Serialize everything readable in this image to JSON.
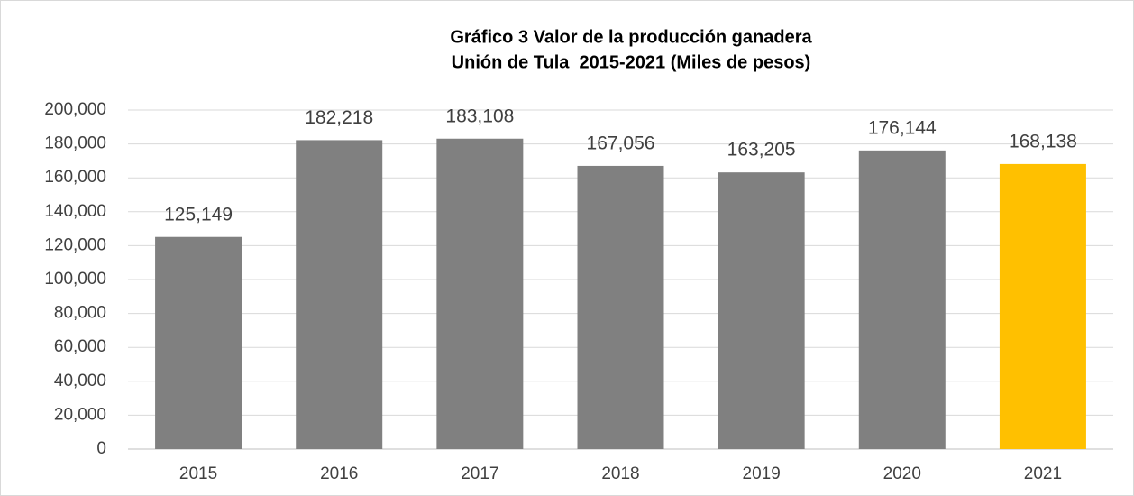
{
  "chart_data": {
    "type": "bar",
    "title": "Gráfico 3 Valor de la producción ganadera",
    "subtitle": "Unión de Tula  2015-2021 (Miles de pesos)",
    "categories": [
      "2015",
      "2016",
      "2017",
      "2018",
      "2019",
      "2020",
      "2021"
    ],
    "values": [
      125149,
      182218,
      183108,
      167056,
      163205,
      176144,
      168138
    ],
    "value_labels": [
      "125,149",
      "182,218",
      "183,108",
      "167,056",
      "163,205",
      "176,144",
      "168,138"
    ],
    "colors": [
      "#808080",
      "#808080",
      "#808080",
      "#808080",
      "#808080",
      "#808080",
      "#ffc000"
    ],
    "ylim": [
      0,
      200000
    ],
    "yticks": [
      0,
      {
        "value": 20000,
        "label": "20,000"
      },
      {
        "value": 40000,
        "label": "40,000"
      },
      {
        "value": 60000,
        "label": "60,000"
      },
      {
        "value": 80000,
        "label": "80,000"
      },
      {
        "value": 100000,
        "label": "100,000"
      },
      {
        "value": 120000,
        "label": "120,000"
      },
      {
        "value": 140000,
        "label": "140,000"
      },
      {
        "value": 160000,
        "label": "160,000"
      },
      {
        "value": 180000,
        "label": "180,000"
      },
      {
        "value": 200000,
        "label": "200,000"
      }
    ],
    "grid": true
  }
}
